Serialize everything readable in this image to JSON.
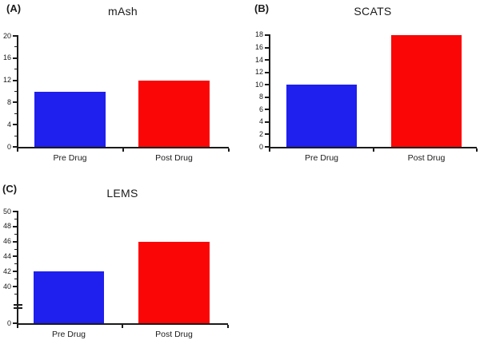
{
  "figure": {
    "background": "#ffffff"
  },
  "colors": {
    "pre_drug_bar": "#1f1fee",
    "post_drug_bar": "#fb0606",
    "axis": "#1b1b1b",
    "text": "#1b1b1b"
  },
  "chart_data": [
    {
      "type": "bar",
      "panel_label": "(A)",
      "title": "mAsh",
      "categories": [
        "Pre Drug",
        "Post Drug"
      ],
      "values": [
        10,
        12
      ],
      "bar_colors": [
        "#1f1fee",
        "#fb0606"
      ],
      "ylim": [
        0,
        20
      ],
      "yticks": [
        0,
        4,
        8,
        12,
        16,
        20
      ],
      "yticks_minor": [
        2,
        6,
        10,
        14,
        18
      ],
      "axis_break": false,
      "grid": false,
      "legend": false,
      "xlabel": "",
      "ylabel": ""
    },
    {
      "type": "bar",
      "panel_label": "(B)",
      "title": "SCATS",
      "categories": [
        "Pre Drug",
        "Post Drug"
      ],
      "values": [
        10,
        18
      ],
      "bar_colors": [
        "#1f1fee",
        "#fb0606"
      ],
      "ylim": [
        0,
        18
      ],
      "yticks": [
        0,
        2,
        4,
        6,
        8,
        10,
        12,
        14,
        16,
        18
      ],
      "yticks_minor": [],
      "axis_break": false,
      "grid": false,
      "legend": false,
      "xlabel": "",
      "ylabel": ""
    },
    {
      "type": "bar",
      "panel_label": "(C)",
      "title": "LEMS",
      "categories": [
        "Pre Drug",
        "Post Drug"
      ],
      "values": [
        42,
        46
      ],
      "bar_colors": [
        "#1f1fee",
        "#fb0606"
      ],
      "ylim": [
        0,
        50
      ],
      "yticks": [
        0,
        40,
        42,
        44,
        46,
        48,
        50
      ],
      "yticks_minor": [
        39,
        41,
        43,
        45,
        47,
        49
      ],
      "axis_break": true,
      "axis_break_between": [
        0,
        40
      ],
      "grid": false,
      "legend": false,
      "xlabel": "",
      "ylabel": ""
    }
  ]
}
